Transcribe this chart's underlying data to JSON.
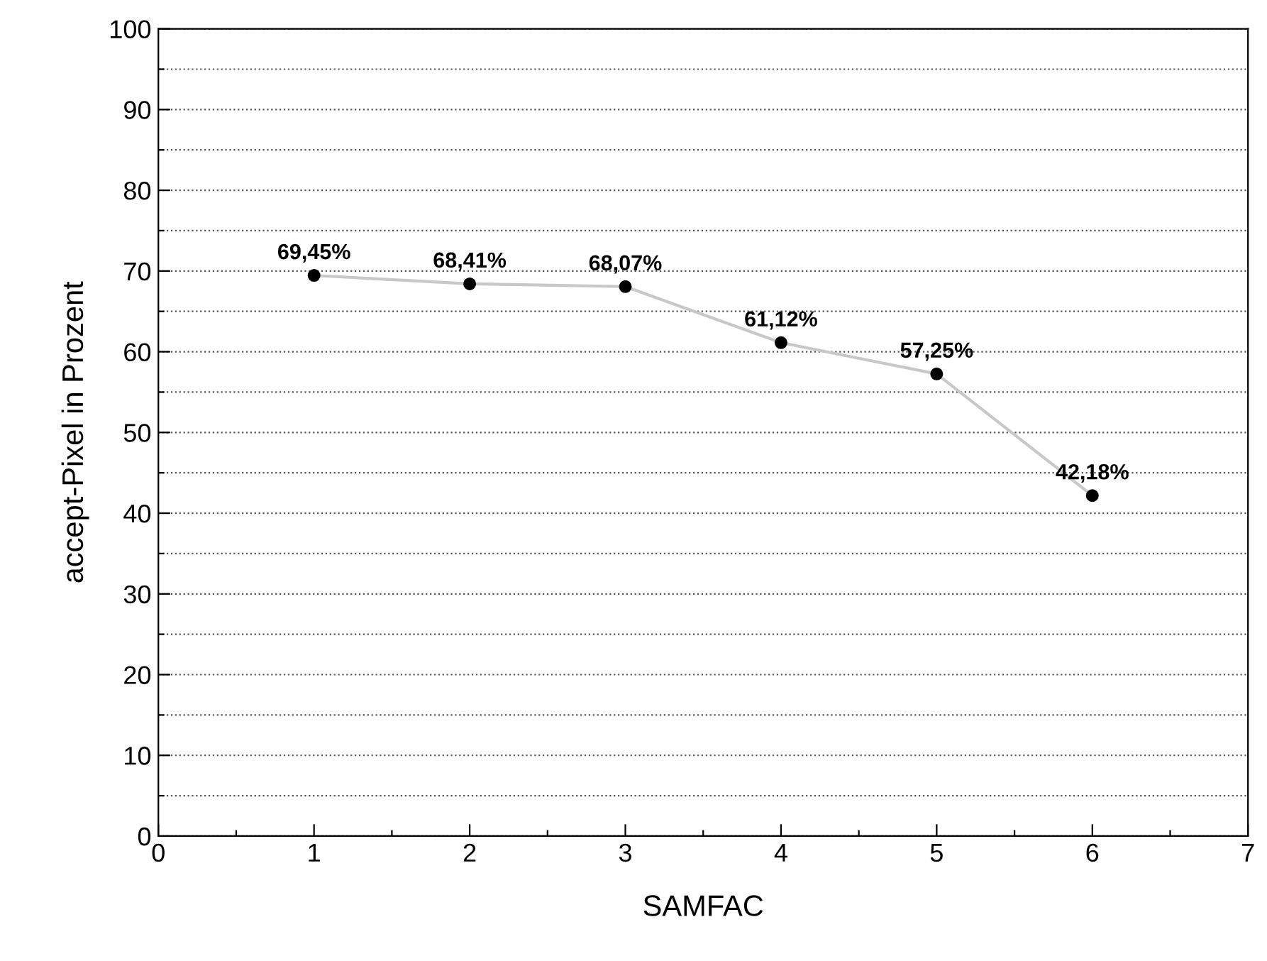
{
  "chart_data": {
    "type": "line",
    "xlabel": "SAMFAC",
    "ylabel": "accept-Pixel in Prozent",
    "x": [
      1,
      2,
      3,
      4,
      5,
      6
    ],
    "series": [
      {
        "color": "#c8c8c8",
        "colors": [
          "#000000",
          "#000000",
          "#000000",
          "#000000",
          "#000000",
          "#000000"
        ],
        "values": [
          69.45,
          68.41,
          68.07,
          61.12,
          57.25,
          42.18
        ],
        "value_labels": [
          "69,45%",
          "68,41%",
          "68,07%",
          "61,12%",
          "57,25%",
          "42,18%"
        ]
      }
    ],
    "xlim": [
      0,
      7
    ],
    "ylim": [
      0,
      100
    ],
    "xticks": [
      0,
      {
        "value": 0.5,
        "label": null
      },
      1,
      {
        "value": 1.5,
        "label": null
      },
      2,
      {
        "value": 2.5,
        "label": null
      },
      3,
      {
        "value": 3.5,
        "label": null
      },
      4,
      {
        "value": 4.5,
        "label": null
      },
      5,
      {
        "value": 5.5,
        "label": null
      },
      6,
      {
        "value": 6.5,
        "label": null
      },
      7
    ],
    "yticks": [
      0,
      {
        "value": 5,
        "label": null
      },
      10,
      {
        "value": 15,
        "label": null
      },
      20,
      {
        "value": 25,
        "label": null
      },
      30,
      {
        "value": 35,
        "label": null
      },
      40,
      {
        "value": 45,
        "label": null
      },
      50,
      {
        "value": 55,
        "label": null
      },
      60,
      {
        "value": 65,
        "label": null
      },
      70,
      {
        "value": 75,
        "label": null
      },
      80,
      {
        "value": 85,
        "label": null
      },
      90,
      {
        "value": 95,
        "label": null
      },
      100
    ],
    "grid": "y",
    "marker": "circle",
    "line_style": "solid"
  }
}
